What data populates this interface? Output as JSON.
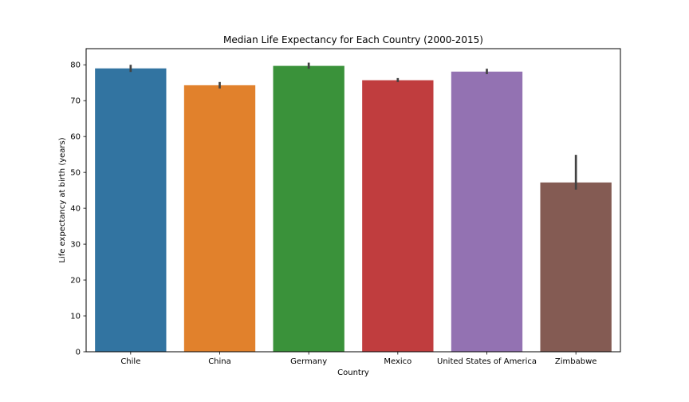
{
  "chart_data": {
    "type": "bar",
    "title": "Median Life Expectancy for Each Country (2000-2015)",
    "xlabel": "Country",
    "ylabel": "Life expectancy at birth (years)",
    "ylim": [
      0,
      84.5
    ],
    "yticks": [
      0,
      10,
      20,
      30,
      40,
      50,
      60,
      70,
      80
    ],
    "grid": false,
    "categories": [
      "Chile",
      "China",
      "Germany",
      "Mexico",
      "United States of America",
      "Zimbabwe"
    ],
    "values": [
      79.0,
      74.3,
      79.7,
      75.7,
      78.1,
      47.2
    ],
    "error_bars": [
      [
        78.0,
        80.0
      ],
      [
        73.4,
        75.2
      ],
      [
        78.9,
        80.6
      ],
      [
        75.2,
        76.3
      ],
      [
        77.4,
        78.9
      ],
      [
        45.2,
        54.9
      ]
    ],
    "colors": [
      "#3274a1",
      "#e1812c",
      "#3a923a",
      "#c03d3e",
      "#9372b2",
      "#845b53"
    ],
    "error_color": "#424242"
  }
}
